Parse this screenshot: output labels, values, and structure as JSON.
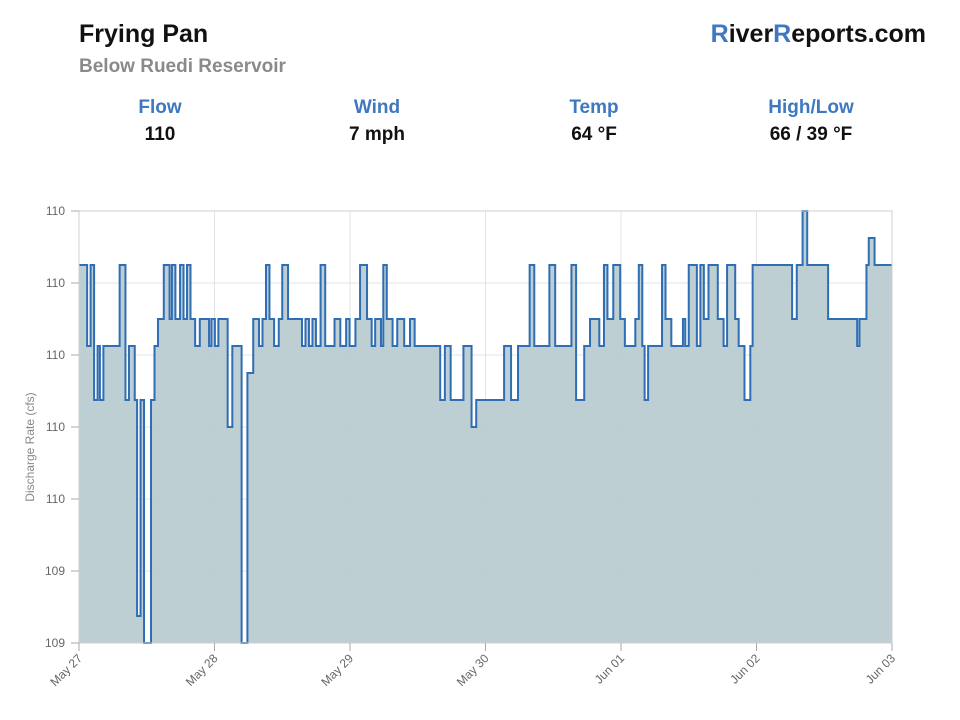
{
  "header": {
    "title": "Frying Pan",
    "subtitle": "Below Ruedi Reservoir",
    "brand_r1": "R",
    "brand_mid1": "iver",
    "brand_r2": "R",
    "brand_mid2": "eports.com"
  },
  "stats": [
    {
      "label": "Flow",
      "value": "110"
    },
    {
      "label": "Wind",
      "value": "7 mph"
    },
    {
      "label": "Temp",
      "value": "64 °F"
    },
    {
      "label": "High/Low",
      "value": "66 / 39 °F"
    }
  ],
  "colors": {
    "accent": "#3d78c0",
    "line": "#2f6db5",
    "fill": "#b9ccd0"
  },
  "chart_data": {
    "type": "area",
    "ylabel": "Discharge Rate (cfs)",
    "xlabel": "",
    "y_tick_labels": [
      "110",
      "110",
      "110",
      "110",
      "110",
      "109",
      "109"
    ],
    "ylim": [
      108.5,
      110.1
    ],
    "x_tick_labels": [
      "May 27",
      "May 28",
      "May 29",
      "May 30",
      "Jun 01",
      "Jun 02",
      "Jun 03"
    ],
    "x_range_days": [
      0,
      7
    ],
    "grid": true,
    "step": true,
    "series": [
      {
        "x": [
          0,
          0.07,
          0.1,
          0.13,
          0.16,
          0.18,
          0.21,
          0.25,
          0.35,
          0.4,
          0.43,
          0.48,
          0.5,
          0.53,
          0.56,
          0.58,
          0.62,
          0.65,
          0.68,
          0.73,
          0.78,
          0.8,
          0.83,
          0.87,
          0.9,
          0.93,
          0.96,
          1.0,
          1.04,
          1.08,
          1.12,
          1.14,
          1.17,
          1.2,
          1.28,
          1.32,
          1.37,
          1.4,
          1.45,
          1.5,
          1.55,
          1.58,
          1.61,
          1.64,
          1.68,
          1.72,
          1.75,
          1.8,
          1.86,
          1.92,
          1.95,
          1.98,
          2.01,
          2.04,
          2.08,
          2.12,
          2.18,
          2.2,
          2.25,
          2.3,
          2.33,
          2.38,
          2.42,
          2.48,
          2.52,
          2.55,
          2.6,
          2.62,
          2.65,
          2.7,
          2.74,
          2.8,
          2.85,
          2.89,
          3.0,
          3.07,
          3.11,
          3.15,
          3.2,
          3.25,
          3.31,
          3.38,
          3.42,
          3.66,
          3.72,
          3.78,
          3.82,
          3.88,
          3.92,
          3.99,
          4.05,
          4.1,
          4.15,
          4.24,
          4.28,
          4.35,
          4.4,
          4.48,
          4.52,
          4.55,
          4.6,
          4.66,
          4.7,
          4.79,
          4.82,
          4.85,
          4.87,
          4.9,
          5.02,
          5.05,
          5.1,
          5.2,
          5.22,
          5.25,
          5.32,
          5.35,
          5.38,
          5.42,
          5.5,
          5.55,
          5.58,
          5.65,
          5.68,
          5.73,
          5.78,
          5.8,
          6.0,
          6.1,
          6.14,
          6.18,
          6.23,
          6.27,
          6.3,
          6.34,
          6.45,
          6.55,
          6.7,
          6.72,
          6.78,
          6.8,
          6.85,
          6.9,
          6.95,
          7.0
        ],
        "y": [
          109.9,
          109.6,
          109.9,
          109.4,
          109.6,
          109.4,
          109.6,
          109.6,
          109.9,
          109.4,
          109.6,
          109.4,
          108.6,
          109.4,
          108.5,
          108.5,
          109.4,
          109.6,
          109.7,
          109.9,
          109.7,
          109.9,
          109.7,
          109.9,
          109.7,
          109.9,
          109.7,
          109.6,
          109.7,
          109.7,
          109.6,
          109.7,
          109.6,
          109.7,
          109.3,
          109.6,
          109.6,
          108.5,
          109.5,
          109.7,
          109.6,
          109.7,
          109.9,
          109.7,
          109.6,
          109.7,
          109.9,
          109.7,
          109.7,
          109.6,
          109.7,
          109.6,
          109.7,
          109.6,
          109.9,
          109.6,
          109.6,
          109.7,
          109.6,
          109.7,
          109.6,
          109.7,
          109.9,
          109.7,
          109.6,
          109.7,
          109.6,
          109.9,
          109.7,
          109.6,
          109.7,
          109.6,
          109.7,
          109.6,
          109.6,
          109.6,
          109.4,
          109.6,
          109.4,
          109.4,
          109.6,
          109.3,
          109.4,
          109.6,
          109.4,
          109.6,
          109.6,
          109.9,
          109.6,
          109.6,
          109.9,
          109.6,
          109.6,
          109.9,
          109.4,
          109.6,
          109.7,
          109.6,
          109.9,
          109.7,
          109.9,
          109.7,
          109.6,
          109.7,
          109.9,
          109.6,
          109.4,
          109.6,
          109.9,
          109.7,
          109.6,
          109.7,
          109.6,
          109.9,
          109.6,
          109.9,
          109.7,
          109.9,
          109.7,
          109.6,
          109.9,
          109.7,
          109.6,
          109.4,
          109.6,
          109.9,
          109.9,
          109.9,
          109.7,
          109.9,
          110.1,
          109.9,
          109.9,
          109.9,
          109.7,
          109.7,
          109.6,
          109.7,
          109.9,
          110.0,
          109.9,
          109.9,
          109.9,
          109.9
        ]
      }
    ]
  }
}
